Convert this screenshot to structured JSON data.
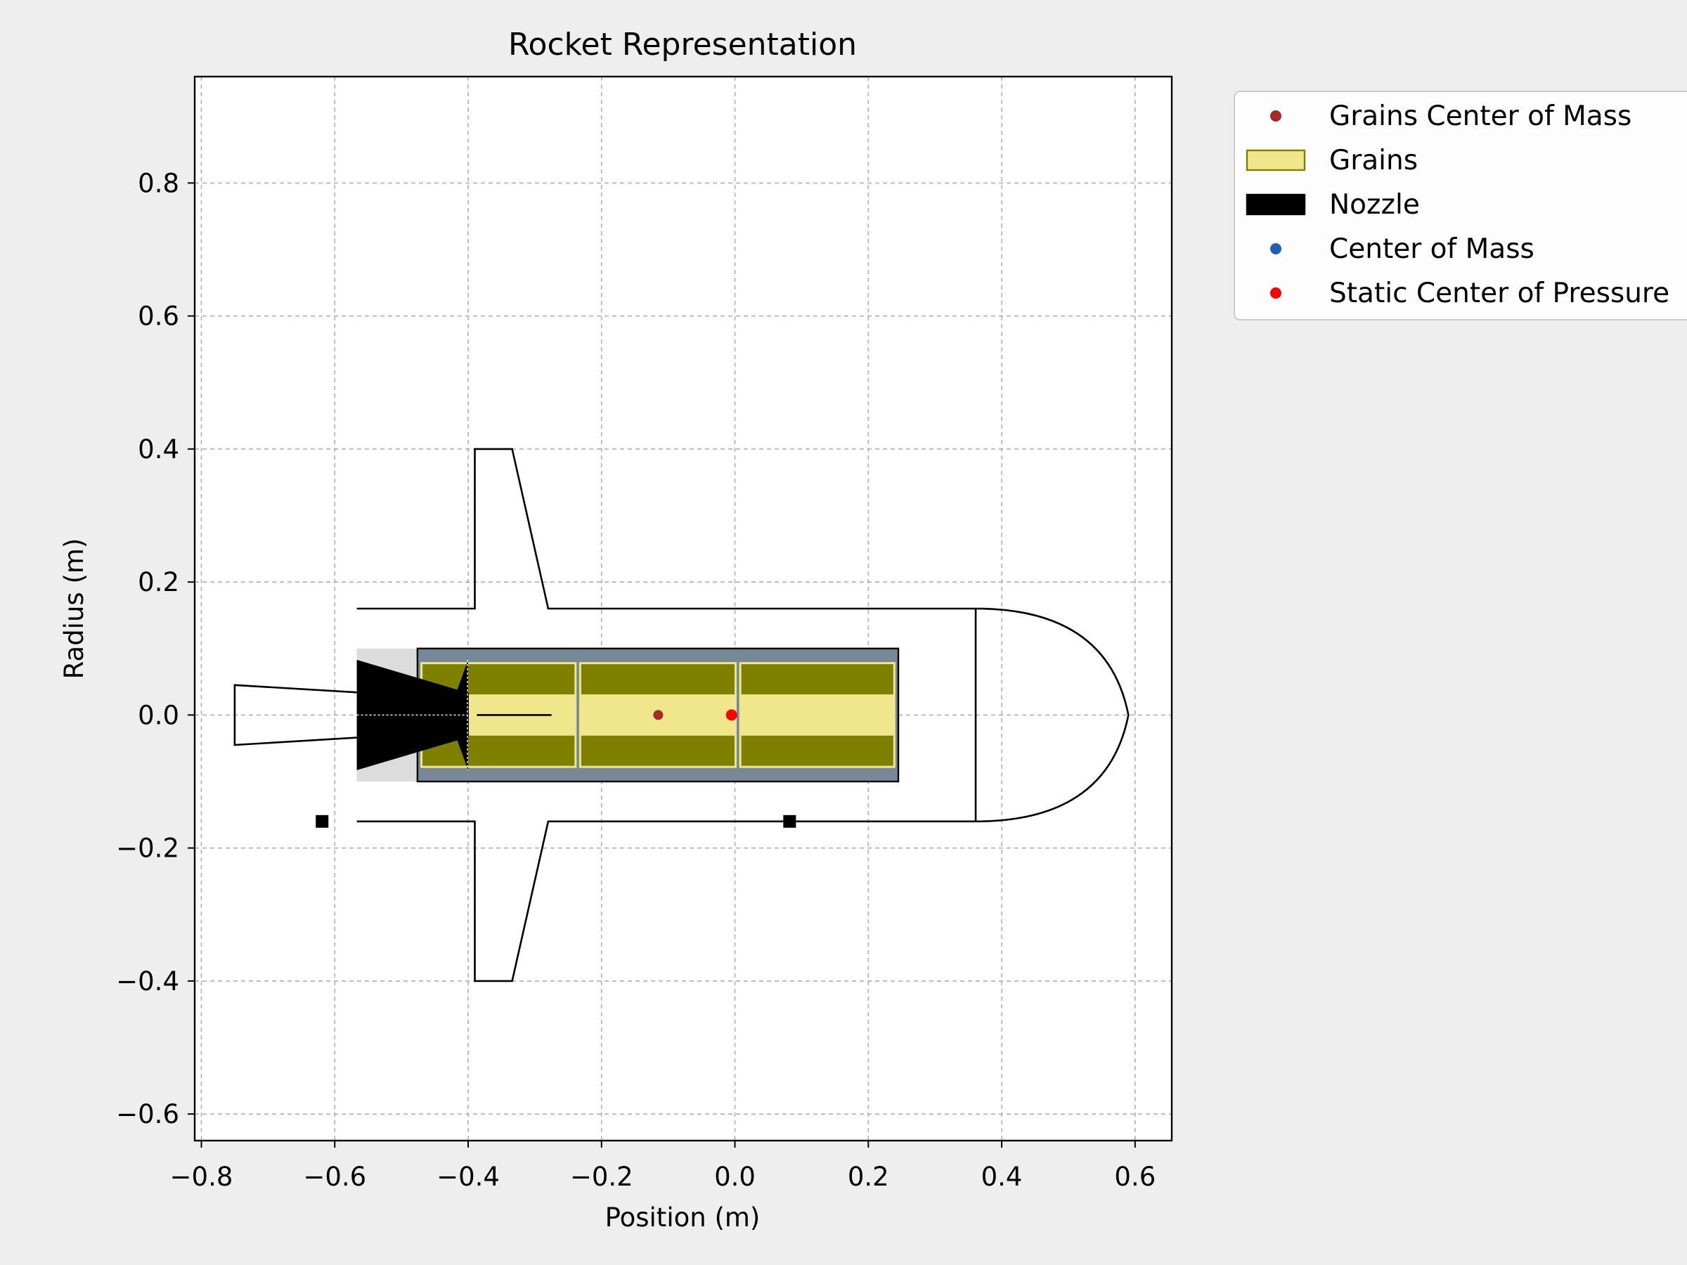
{
  "chart_data": {
    "type": "diagram",
    "title": "Rocket Representation",
    "xlabel": "Position (m)",
    "ylabel": "Radius (m)",
    "xlim": [
      -0.81,
      0.655
    ],
    "ylim": [
      -0.64,
      0.96
    ],
    "x_ticks": [
      -0.8,
      -0.6,
      -0.4,
      -0.2,
      0.0,
      0.2,
      0.4,
      0.6
    ],
    "x_tick_labels": [
      "−0.8",
      "−0.6",
      "−0.4",
      "−0.2",
      "0.0",
      "0.2",
      "0.4",
      "0.6"
    ],
    "y_ticks": [
      0.8,
      0.6,
      0.4,
      0.2,
      0.0,
      -0.2,
      -0.4,
      -0.6
    ],
    "y_tick_labels": [
      "0.8",
      "0.6",
      "0.4",
      "0.2",
      "0.0",
      "−0.2",
      "−0.4",
      "−0.6"
    ],
    "grid": true,
    "legend_position": "outside-top-right",
    "legend": [
      {
        "label": "Grains Center of Mass",
        "marker": "dot",
        "color": "#a52a2a"
      },
      {
        "label": "Grains",
        "marker": "patch",
        "color": "#f0e68c",
        "edge": "#808000"
      },
      {
        "label": "Nozzle",
        "marker": "patch",
        "color": "#000000"
      },
      {
        "label": "Center of Mass",
        "marker": "dot",
        "color": "#1f5fb4"
      },
      {
        "label": "Static Center of Pressure",
        "marker": "dot",
        "color": "#ff0000"
      }
    ],
    "body": {
      "tube_radius": 0.16,
      "tube_x": [
        -0.567,
        0.361
      ],
      "nose": {
        "x_start": 0.361,
        "x_tip": 0.59,
        "radius": 0.16
      }
    },
    "fins": {
      "root_x": [
        -0.39,
        -0.28
      ],
      "tip_x": [
        -0.39,
        -0.334
      ],
      "span_y": 0.4
    },
    "tail": {
      "points": [
        [
          -0.567,
          0.034
        ],
        [
          -0.75,
          0.045
        ],
        [
          -0.75,
          -0.045
        ],
        [
          -0.567,
          -0.034
        ]
      ]
    },
    "motor": {
      "casing_x": [
        -0.476,
        0.245
      ],
      "casing_radius": 0.1,
      "casing_color": "#778899",
      "case_cap_x": [
        -0.567,
        -0.476
      ],
      "case_cap_color": "#dcdcdc",
      "grains": [
        {
          "x": [
            -0.47,
            -0.239
          ],
          "outer_r": 0.078,
          "inner_r": 0.031
        },
        {
          "x": [
            -0.232,
            0.001
          ],
          "outer_r": 0.078,
          "inner_r": 0.031
        },
        {
          "x": [
            0.008,
            0.239
          ],
          "outer_r": 0.078,
          "inner_r": 0.031
        }
      ],
      "grain_outer_color": "#808000",
      "grain_inner_color": "#f0e68c",
      "grain_edge_color": "#f0e68c",
      "nozzle": [
        [
          -0.567,
          0.083
        ],
        [
          -0.399,
          0.033
        ],
        [
          -0.399,
          -0.033
        ],
        [
          -0.567,
          -0.083
        ]
      ],
      "nozzle_exit": [
        [
          -0.4,
          0.083
        ],
        [
          -0.4,
          -0.083
        ],
        [
          -0.43,
          0.0
        ]
      ],
      "axis_line_x": [
        -0.387,
        -0.275
      ]
    },
    "points": {
      "grains_center_of_mass": {
        "x": -0.115,
        "y": 0.0
      },
      "center_of_mass": {
        "x": -0.005,
        "y": 0.0
      },
      "static_center_of_pressure": {
        "x": -0.005,
        "y": 0.0
      }
    },
    "rail_buttons": [
      {
        "x": -0.619,
        "y": -0.16
      },
      {
        "x": 0.082,
        "y": -0.16
      }
    ]
  }
}
